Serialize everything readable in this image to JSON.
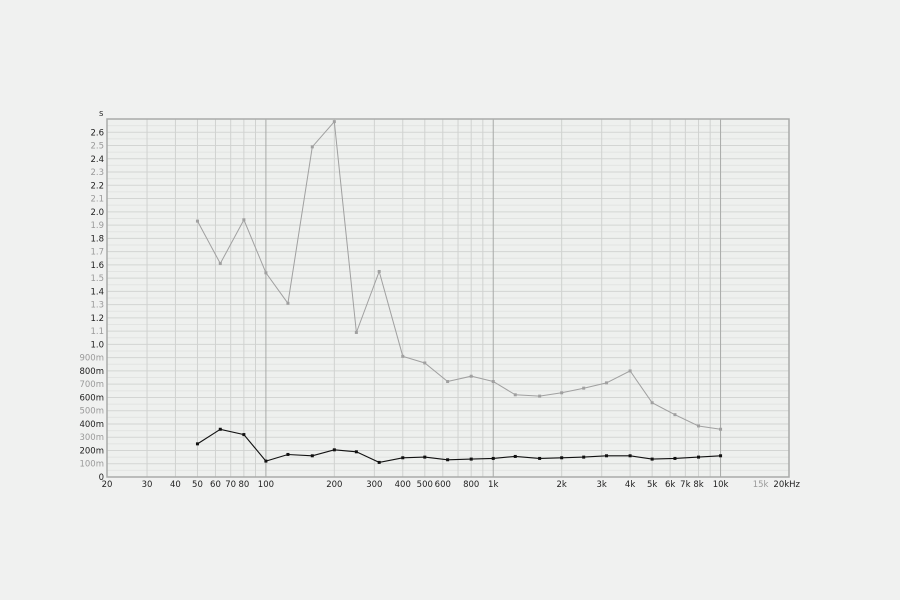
{
  "chart_data": {
    "type": "line",
    "ylabel": "s",
    "xunit": "kHz",
    "xscale": "log",
    "xlim": [
      20,
      20000
    ],
    "ylim": [
      0,
      2.7
    ],
    "grid": true,
    "x": [
      50,
      63,
      80,
      100,
      125,
      160,
      200,
      250,
      315,
      400,
      500,
      630,
      800,
      1000,
      1250,
      1600,
      2000,
      2500,
      3150,
      4000,
      5000,
      6300,
      8000,
      10000
    ],
    "series": [
      {
        "color": "#a0a0a0",
        "values": [
          1.93,
          1.61,
          1.94,
          1.54,
          1.31,
          2.49,
          2.68,
          1.09,
          1.55,
          0.91,
          0.86,
          0.72,
          0.76,
          0.72,
          0.62,
          0.61,
          0.635,
          0.67,
          0.71,
          0.8,
          0.56,
          0.47,
          0.385,
          0.36
        ]
      },
      {
        "color": "#111111",
        "values": [
          0.25,
          0.36,
          0.32,
          0.12,
          0.17,
          0.16,
          0.205,
          0.19,
          0.11,
          0.145,
          0.15,
          0.13,
          0.135,
          0.14,
          0.155,
          0.14,
          0.145,
          0.15,
          0.16,
          0.16,
          0.135,
          0.14,
          0.15,
          0.16
        ]
      }
    ],
    "y_ticks": [
      {
        "v": 0,
        "label": "0"
      },
      {
        "v": 0.1,
        "label": "100m"
      },
      {
        "v": 0.2,
        "label": "200m"
      },
      {
        "v": 0.3,
        "label": "300m"
      },
      {
        "v": 0.4,
        "label": "400m"
      },
      {
        "v": 0.5,
        "label": "500m"
      },
      {
        "v": 0.6,
        "label": "600m"
      },
      {
        "v": 0.7,
        "label": "700m"
      },
      {
        "v": 0.8,
        "label": "800m"
      },
      {
        "v": 0.9,
        "label": "900m"
      },
      {
        "v": 1.0,
        "label": "1.0"
      },
      {
        "v": 1.1,
        "label": "1.1"
      },
      {
        "v": 1.2,
        "label": "1.2"
      },
      {
        "v": 1.3,
        "label": "1.3"
      },
      {
        "v": 1.4,
        "label": "1.4"
      },
      {
        "v": 1.5,
        "label": "1.5"
      },
      {
        "v": 1.6,
        "label": "1.6"
      },
      {
        "v": 1.7,
        "label": "1.7"
      },
      {
        "v": 1.8,
        "label": "1.8"
      },
      {
        "v": 1.9,
        "label": "1.9"
      },
      {
        "v": 2.0,
        "label": "2.0"
      },
      {
        "v": 2.1,
        "label": "2.1"
      },
      {
        "v": 2.2,
        "label": "2.2"
      },
      {
        "v": 2.3,
        "label": "2.3"
      },
      {
        "v": 2.4,
        "label": "2.4"
      },
      {
        "v": 2.5,
        "label": "2.5"
      },
      {
        "v": 2.6,
        "label": "2.6"
      }
    ],
    "x_ticks": [
      {
        "v": 20,
        "label": "20"
      },
      {
        "v": 30,
        "label": "30"
      },
      {
        "v": 40,
        "label": "40"
      },
      {
        "v": 50,
        "label": "50"
      },
      {
        "v": 60,
        "label": "60"
      },
      {
        "v": 70,
        "label": "70"
      },
      {
        "v": 80,
        "label": "80"
      },
      {
        "v": 100,
        "label": "100"
      },
      {
        "v": 200,
        "label": "200"
      },
      {
        "v": 300,
        "label": "300"
      },
      {
        "v": 400,
        "label": "400"
      },
      {
        "v": 500,
        "label": "500"
      },
      {
        "v": 600,
        "label": "600"
      },
      {
        "v": 800,
        "label": "800"
      },
      {
        "v": 1000,
        "label": "1k"
      },
      {
        "v": 2000,
        "label": "2k"
      },
      {
        "v": 3000,
        "label": "3k"
      },
      {
        "v": 4000,
        "label": "4k"
      },
      {
        "v": 5000,
        "label": "5k"
      },
      {
        "v": 6000,
        "label": "6k"
      },
      {
        "v": 7000,
        "label": "7k"
      },
      {
        "v": 8000,
        "label": "8k"
      },
      {
        "v": 10000,
        "label": "10k"
      },
      {
        "v": 15000,
        "label": "15k",
        "muted": true
      },
      {
        "v": 20000,
        "label": "20kHz"
      }
    ]
  }
}
